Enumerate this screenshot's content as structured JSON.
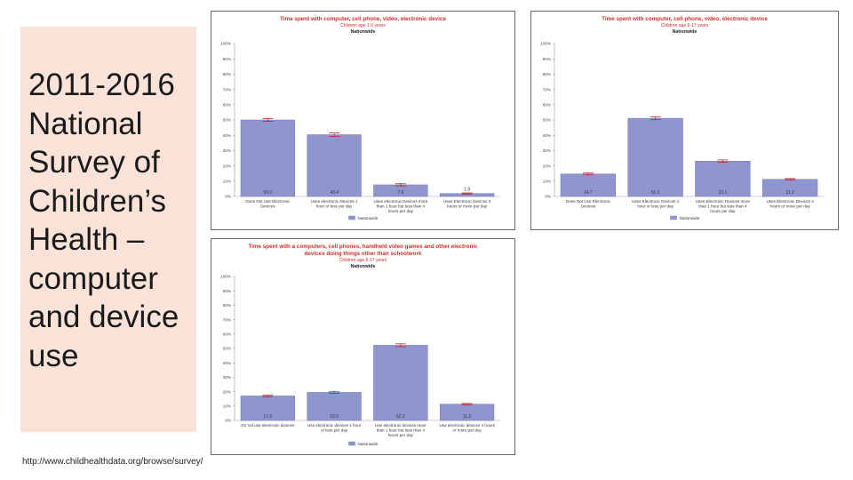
{
  "slide_title": "2011-2016 National Survey of Children’s Health – computer and device use",
  "source_url": "http://www.childhealthdata.org/browse/survey/",
  "colors": {
    "bar": "#8f96cf",
    "bar_stroke": "#6e76b3",
    "title_red": "#d22b2b",
    "error": "#c0262b",
    "panel_bg": "#f9e3d8"
  },
  "chart_data": [
    {
      "type": "bar",
      "title": "Time spent with computer, cell phone, video, electronic device",
      "subtitle": "Children age 1-5 years",
      "region": "Nationwide",
      "categories": [
        [
          "Does Not Use Electronic",
          "Devices"
        ],
        [
          "Uses electronic Devices 1",
          "hour or less per day"
        ],
        [
          "Uses electronic Devices more",
          "than 1 hour but less than 4",
          "hours per day"
        ],
        [
          "Uses Electronic Devices 4",
          "hours or more per day"
        ]
      ],
      "values": [
        50.0,
        40.4,
        7.6,
        1.9
      ],
      "value_labels": [
        "50.0",
        "40.4",
        "7.6",
        "1.9"
      ],
      "errors": [
        0.9,
        1.1,
        0.7,
        0.4
      ],
      "ylim": [
        0,
        100
      ],
      "yticks": [
        "0%",
        "10%",
        "20%",
        "30%",
        "40%",
        "50%",
        "60%",
        "70%",
        "80%",
        "90%",
        "100%"
      ],
      "legend": "Nationwide"
    },
    {
      "type": "bar",
      "title": "Time spent with computer, cell phone, video, electronic device",
      "subtitle": "Children age 6-17 years",
      "region": "Nationwide",
      "categories": [
        [
          "Does Not Use Electronic",
          "Devices"
        ],
        [
          "Uses Electronic Devices 1",
          "hour or less per day"
        ],
        [
          "Uses Electronic Devices more",
          "than 1 hour but less than 4",
          "hours per day"
        ],
        [
          "Uses Electronic Devices 4",
          "hours or more per day"
        ]
      ],
      "values": [
        14.7,
        51.1,
        23.1,
        11.2
      ],
      "value_labels": [
        "14.7",
        "51.1",
        "23.1",
        "11.2"
      ],
      "errors": [
        0.6,
        0.9,
        0.8,
        0.5
      ],
      "ylim": [
        0,
        100
      ],
      "yticks": [
        "0%",
        "10%",
        "20%",
        "30%",
        "40%",
        "50%",
        "60%",
        "70%",
        "80%",
        "90%",
        "100%"
      ],
      "legend": "Nationwide"
    },
    {
      "type": "bar",
      "title": "Time spent with a computers, cell phones, handheld video games and other electronic",
      "title2": "devices doing things other than schoolwork",
      "subtitle": "Children age 6-17 years",
      "region": "Nationwide",
      "categories": [
        [
          "Do not use electronic devices"
        ],
        [
          "Use electronic devices 1 hour",
          "or less per day"
        ],
        [
          "Use electronic devices more",
          "than 1 hour but less than 4",
          "hours per day"
        ],
        [
          "Use electronic devices 4 hours",
          "or more per day"
        ]
      ],
      "values": [
        17.0,
        19.5,
        52.2,
        11.3
      ],
      "value_labels": [
        "17.0",
        "19.5",
        "52.2",
        "11.3"
      ],
      "errors": [
        0.6,
        0.7,
        1.0,
        0.5
      ],
      "ylim": [
        0,
        100
      ],
      "yticks": [
        "0%",
        "10%",
        "20%",
        "30%",
        "40%",
        "50%",
        "60%",
        "70%",
        "80%",
        "90%",
        "100%"
      ],
      "legend": "Nationwide"
    }
  ]
}
